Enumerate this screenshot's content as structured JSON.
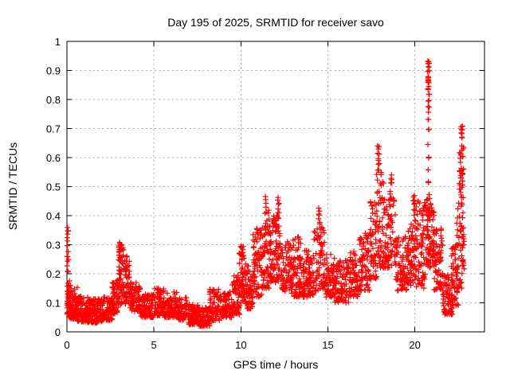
{
  "chart_data": {
    "type": "scatter",
    "title": "Day 195 of 2025, SRMTID for receiver savo",
    "xlabel": "GPS time / hours",
    "ylabel": "SRMTID / TECUs",
    "xlim": [
      0,
      24
    ],
    "ylim": [
      0,
      1
    ],
    "xticks": [
      0,
      5,
      10,
      15,
      20
    ],
    "xtick_labels": [
      "0",
      "5",
      "10",
      "15",
      "20"
    ],
    "yticks": [
      0,
      0.1,
      0.2,
      0.3,
      0.4,
      0.5,
      0.6,
      0.7,
      0.8,
      0.9,
      1
    ],
    "ytick_labels": [
      "0",
      "0.1",
      "0.2",
      "0.3",
      "0.4",
      "0.5",
      "0.6",
      "0.7",
      "0.8",
      "0.9",
      "1"
    ],
    "grid": true,
    "legend": "none",
    "marker": "plus",
    "marker_color": "#ff0000",
    "grid_color": "#a8a8a8",
    "frame_color": "#000000",
    "background_color": "#ffffff",
    "band_format": "[x_start_hours, x_end_hours, y_min_TECUs, y_max_TECUs, point_count, low_bias_exponent]",
    "point_bands": [
      [
        0.0,
        0.18,
        0.05,
        0.19,
        40,
        1.2
      ],
      [
        0.15,
        0.6,
        0.045,
        0.16,
        70,
        1.7
      ],
      [
        0.6,
        1.2,
        0.035,
        0.125,
        95,
        1.6
      ],
      [
        1.2,
        2.0,
        0.03,
        0.115,
        115,
        1.5
      ],
      [
        2.0,
        2.6,
        0.04,
        0.12,
        80,
        1.5
      ],
      [
        2.6,
        2.95,
        0.06,
        0.185,
        50,
        1.4
      ],
      [
        2.95,
        3.25,
        0.095,
        0.3,
        55,
        1.2
      ],
      [
        3.25,
        3.6,
        0.095,
        0.255,
        50,
        1.2
      ],
      [
        3.6,
        4.2,
        0.07,
        0.17,
        75,
        1.5
      ],
      [
        4.2,
        5.0,
        0.05,
        0.13,
        95,
        1.5
      ],
      [
        5.0,
        5.6,
        0.055,
        0.15,
        70,
        1.5
      ],
      [
        5.6,
        6.4,
        0.05,
        0.14,
        95,
        1.5
      ],
      [
        6.4,
        7.0,
        0.04,
        0.12,
        70,
        1.5
      ],
      [
        7.0,
        7.6,
        0.025,
        0.095,
        80,
        1.4
      ],
      [
        7.6,
        8.2,
        0.02,
        0.085,
        80,
        1.4
      ],
      [
        8.2,
        8.8,
        0.04,
        0.15,
        70,
        1.6
      ],
      [
        8.8,
        9.5,
        0.05,
        0.14,
        80,
        1.5
      ],
      [
        9.5,
        9.95,
        0.06,
        0.2,
        60,
        1.5
      ],
      [
        9.9,
        10.2,
        0.1,
        0.3,
        45,
        1.2
      ],
      [
        10.2,
        10.7,
        0.08,
        0.24,
        65,
        1.4
      ],
      [
        10.7,
        11.2,
        0.12,
        0.36,
        70,
        1.3
      ],
      [
        11.2,
        11.7,
        0.15,
        0.42,
        75,
        1.3
      ],
      [
        11.7,
        12.3,
        0.17,
        0.4,
        85,
        1.4
      ],
      [
        12.3,
        12.9,
        0.14,
        0.31,
        75,
        1.4
      ],
      [
        12.9,
        13.5,
        0.12,
        0.32,
        75,
        1.4
      ],
      [
        13.5,
        14.2,
        0.12,
        0.28,
        85,
        1.4
      ],
      [
        14.2,
        14.8,
        0.14,
        0.36,
        70,
        1.2
      ],
      [
        14.8,
        15.4,
        0.12,
        0.27,
        70,
        1.4
      ],
      [
        15.4,
        16.2,
        0.1,
        0.25,
        90,
        1.4
      ],
      [
        16.2,
        16.8,
        0.12,
        0.28,
        70,
        1.4
      ],
      [
        16.8,
        17.4,
        0.14,
        0.34,
        75,
        1.3
      ],
      [
        17.4,
        17.8,
        0.18,
        0.45,
        55,
        1.2
      ],
      [
        17.8,
        18.2,
        0.22,
        0.55,
        60,
        1.2
      ],
      [
        18.2,
        18.9,
        0.22,
        0.5,
        80,
        1.3
      ],
      [
        18.9,
        19.6,
        0.14,
        0.33,
        80,
        1.4
      ],
      [
        19.6,
        20.0,
        0.16,
        0.38,
        55,
        1.3
      ],
      [
        20.0,
        20.6,
        0.15,
        0.45,
        80,
        1.3
      ],
      [
        20.6,
        21.1,
        0.22,
        0.46,
        85,
        1.1
      ],
      [
        21.1,
        21.6,
        0.14,
        0.36,
        65,
        1.4
      ],
      [
        21.6,
        22.2,
        0.06,
        0.2,
        70,
        1.5
      ],
      [
        22.1,
        22.5,
        0.09,
        0.3,
        50,
        1.3
      ],
      [
        22.4,
        22.85,
        0.15,
        0.45,
        55,
        1.2
      ],
      [
        22.55,
        22.8,
        0.46,
        0.66,
        35,
        1.0
      ]
    ],
    "spike_columns": [
      {
        "x": 0.05,
        "ys": [
          0.205,
          0.225,
          0.245,
          0.262,
          0.278,
          0.295,
          0.312,
          0.325,
          0.338,
          0.35,
          0.362
        ]
      },
      {
        "x": 3.02,
        "ys": [
          0.245,
          0.262,
          0.278,
          0.292,
          0.305
        ]
      },
      {
        "x": 3.45,
        "ys": [
          0.26
        ]
      },
      {
        "x": 10.05,
        "ys": [
          0.26,
          0.275,
          0.29
        ]
      },
      {
        "x": 11.45,
        "ys": [
          0.43,
          0.445,
          0.458,
          0.468
        ]
      },
      {
        "x": 12.15,
        "ys": [
          0.41,
          0.425,
          0.44,
          0.455,
          0.465
        ]
      },
      {
        "x": 13.3,
        "ys": [
          0.33
        ]
      },
      {
        "x": 14.5,
        "ys": [
          0.375,
          0.39,
          0.405,
          0.418,
          0.428
        ]
      },
      {
        "x": 17.9,
        "ys": [
          0.56,
          0.578,
          0.595,
          0.612,
          0.628,
          0.64
        ]
      },
      {
        "x": 18.65,
        "ys": [
          0.51,
          0.525,
          0.54
        ]
      },
      {
        "x": 19.95,
        "ys": [
          0.4,
          0.42,
          0.44,
          0.455,
          0.468
        ]
      },
      {
        "x": 20.78,
        "ys": [
          0.47,
          0.515,
          0.555,
          0.6,
          0.645,
          0.695,
          0.73,
          0.755,
          0.775,
          0.795,
          0.815,
          0.835,
          0.848,
          0.858,
          0.866,
          0.873,
          0.88,
          0.897,
          0.915,
          0.924,
          0.932
        ]
      },
      {
        "x": 22.7,
        "ys": [
          0.668,
          0.683,
          0.697,
          0.71
        ]
      }
    ]
  }
}
